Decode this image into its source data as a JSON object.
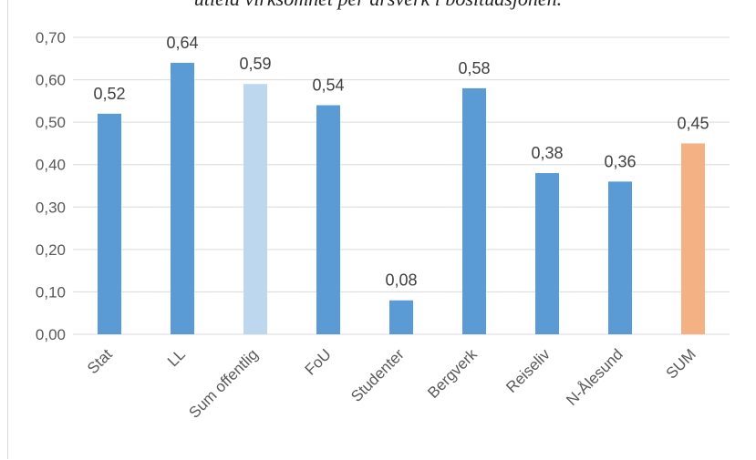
{
  "chart_data": {
    "type": "bar",
    "title": "utleid virksomhet per årsverk i bosituasjonen.",
    "categories": [
      "Stat",
      "LL",
      "Sum offentlig",
      "FoU",
      "Studenter",
      "Bergverk",
      "Reiseliv",
      "N-Ålesund",
      "SUM"
    ],
    "values": [
      0.52,
      0.64,
      0.59,
      0.54,
      0.08,
      0.58,
      0.38,
      0.36,
      0.45
    ],
    "value_labels": [
      "0,52",
      "0,64",
      "0,59",
      "0,54",
      "0,08",
      "0,58",
      "0,38",
      "0,36",
      "0,45"
    ],
    "bar_colors": [
      "#5b9bd5",
      "#5b9bd5",
      "#bdd7ee",
      "#5b9bd5",
      "#5b9bd5",
      "#5b9bd5",
      "#5b9bd5",
      "#5b9bd5",
      "#f4b183"
    ],
    "ylim": [
      0,
      0.7
    ],
    "y_ticks": [
      0,
      0.1,
      0.2,
      0.3,
      0.4,
      0.5,
      0.6,
      0.7
    ],
    "y_tick_labels": [
      "0,00",
      "0,10",
      "0,20",
      "0,30",
      "0,40",
      "0,50",
      "0,60",
      "0,70"
    ],
    "grid": true,
    "gridline_color": "#d9d9d9",
    "xlabel": "",
    "ylabel": ""
  }
}
